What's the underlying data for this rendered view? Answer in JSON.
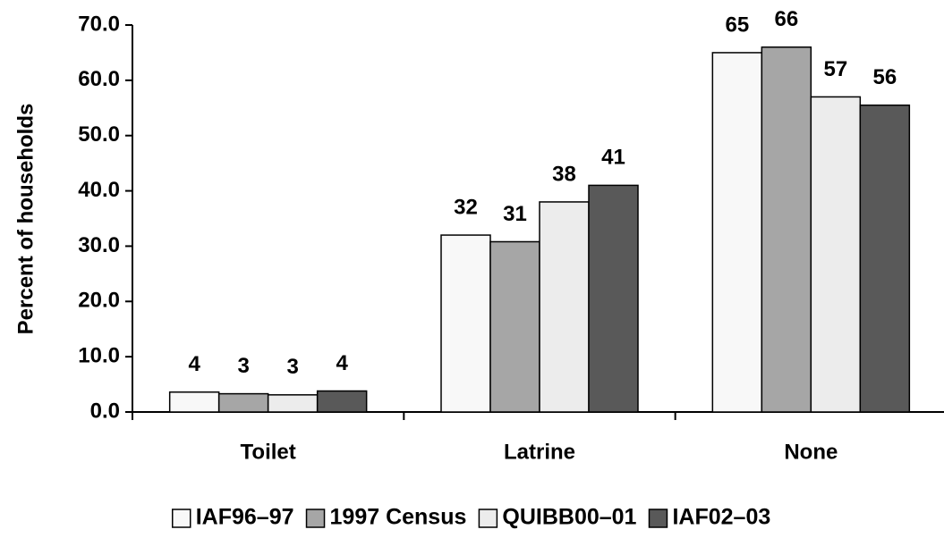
{
  "chart_data": {
    "type": "bar",
    "y_label": "Percent of households",
    "categories": [
      "Toilet",
      "Latrine",
      "None"
    ],
    "series": [
      {
        "name": "IAF96–97",
        "color": "#f8f8f8",
        "values": [
          3.6,
          32.0,
          65.0
        ],
        "value_labels": [
          "4",
          "32",
          "65"
        ]
      },
      {
        "name": "1997 Census",
        "color": "#a6a6a6",
        "values": [
          3.3,
          30.8,
          66.0
        ],
        "value_labels": [
          "3",
          "31",
          "66"
        ]
      },
      {
        "name": "QUIBB00–01",
        "color": "#ececec",
        "values": [
          3.1,
          38.0,
          57.0
        ],
        "value_labels": [
          "3",
          "38",
          "57"
        ]
      },
      {
        "name": "IAF02–03",
        "color": "#595959",
        "values": [
          3.8,
          41.0,
          55.5
        ],
        "value_labels": [
          "4",
          "41",
          "56"
        ]
      }
    ],
    "ylim": [
      0,
      70
    ],
    "yticks": [
      {
        "value": 0,
        "label": "0.0"
      },
      {
        "value": 10,
        "label": "10.0"
      },
      {
        "value": 20,
        "label": "20.0"
      },
      {
        "value": 30,
        "label": "30.0"
      },
      {
        "value": 40,
        "label": "40.0"
      },
      {
        "value": 50,
        "label": "50.0"
      },
      {
        "value": 60,
        "label": "60.0"
      },
      {
        "value": 70,
        "label": "70.0"
      }
    ],
    "legend": "bottom"
  }
}
